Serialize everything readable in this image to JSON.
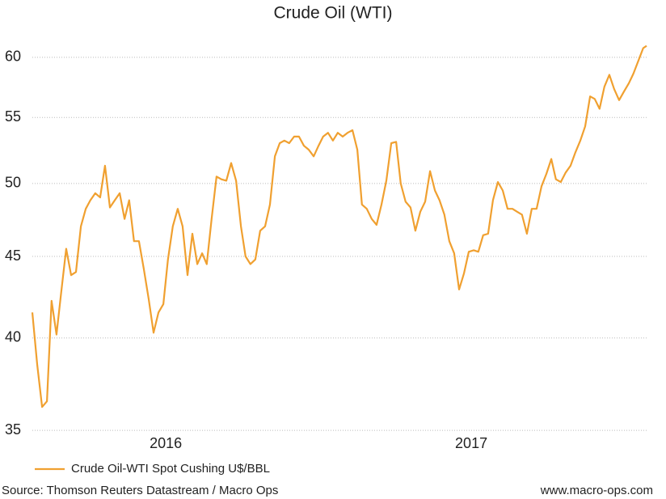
{
  "chart_data": {
    "type": "line",
    "title": "Crude Oil (WTI)",
    "x": [
      2015.563,
      2015.579,
      2015.595,
      2015.611,
      2015.626,
      2015.642,
      2015.658,
      2015.674,
      2015.69,
      2015.706,
      2015.722,
      2015.738,
      2015.753,
      2015.769,
      2015.785,
      2015.801,
      2015.817,
      2015.833,
      2015.849,
      2015.865,
      2015.88,
      2015.896,
      2015.912,
      2015.928,
      2015.944,
      2015.96,
      2015.976,
      2015.992,
      2016.007,
      2016.023,
      2016.039,
      2016.055,
      2016.071,
      2016.087,
      2016.103,
      2016.119,
      2016.134,
      2016.15,
      2016.166,
      2016.182,
      2016.198,
      2016.214,
      2016.23,
      2016.246,
      2016.261,
      2016.277,
      2016.293,
      2016.309,
      2016.325,
      2016.341,
      2016.357,
      2016.373,
      2016.388,
      2016.404,
      2016.42,
      2016.436,
      2016.452,
      2016.468,
      2016.484,
      2016.5,
      2016.515,
      2016.531,
      2016.547,
      2016.563,
      2016.579,
      2016.595,
      2016.611,
      2016.627,
      2016.642,
      2016.658,
      2016.674,
      2016.69,
      2016.706,
      2016.722,
      2016.738,
      2016.754,
      2016.769,
      2016.785,
      2016.801,
      2016.817,
      2016.833,
      2016.849,
      2016.865,
      2016.881,
      2016.896,
      2016.912,
      2016.928,
      2016.944,
      2016.96,
      2016.976,
      2016.992,
      2017.008,
      2017.023,
      2017.039,
      2017.055,
      2017.071,
      2017.087,
      2017.103,
      2017.119,
      2017.135,
      2017.15,
      2017.166,
      2017.182,
      2017.198,
      2017.214,
      2017.23,
      2017.246,
      2017.262,
      2017.277,
      2017.293,
      2017.309,
      2017.325,
      2017.341,
      2017.357,
      2017.373,
      2017.389,
      2017.404,
      2017.42,
      2017.436,
      2017.452,
      2017.468,
      2017.484,
      2017.5,
      2017.516,
      2017.531,
      2017.547,
      2017.563,
      2017.574
    ],
    "series": [
      {
        "name": "Crude Oil-WTI Spot Cushing U$/BBL",
        "color": "#f0a030",
        "values": [
          41.5,
          38.5,
          36.2,
          36.5,
          42.2,
          40.2,
          42.8,
          45.5,
          43.8,
          44.0,
          47,
          48.2,
          48.8,
          49.3,
          49.0,
          51.3,
          48.3,
          48.8,
          49.3,
          47.5,
          48.8,
          46.0,
          46.0,
          44.2,
          42.3,
          40.3,
          41.5,
          42,
          44.8,
          47.0,
          48.2,
          47,
          43.8,
          46.5,
          44.5,
          45.2,
          44.5,
          47.5,
          50.5,
          50.3,
          50.2,
          51.5,
          50.2,
          47.0,
          45.0,
          44.5,
          44.8,
          46.7,
          47.0,
          48.5,
          52.0,
          53.0,
          53.2,
          53.0,
          53.5,
          53.5,
          52.8,
          52.5,
          52.0,
          52.8,
          53.5,
          53.8,
          53.2,
          53.8,
          53.5,
          53.8,
          54.0,
          52.5,
          48.5,
          48.2,
          47.5,
          47.1,
          48.5,
          50.2,
          53.0,
          53.1,
          50.0,
          48.7,
          48.3,
          46.7,
          48.0,
          48.7,
          50.9,
          49.5,
          48.8,
          47.8,
          46.0,
          45.2,
          42.9,
          43.9,
          45.3,
          45.4,
          45.3,
          46.4,
          46.5,
          48.8,
          50.1,
          49.5,
          48.2,
          48.2,
          48.0,
          47.8,
          46.5,
          48.2,
          48.2,
          49.8,
          50.7,
          51.8,
          50.3,
          50.1,
          50.8,
          51.3,
          52.3,
          53.2,
          54.3,
          56.7,
          56.5,
          55.7,
          57.5,
          58.5,
          57.3,
          56.4,
          57.1,
          57.8,
          58.6,
          59.7,
          60.8,
          61.0
        ]
      }
    ],
    "xlim": [
      2015.563,
      2017.574
    ],
    "xticks": [
      2016,
      2017
    ],
    "ylim": [
      34.8,
      62.2
    ],
    "yticks": [
      35,
      40,
      45,
      50,
      55,
      60
    ],
    "log_y": true,
    "grid": true,
    "source": "Source: Thomson Reuters Datastream / Macro Ops",
    "credit": "www.macro-ops.com"
  }
}
